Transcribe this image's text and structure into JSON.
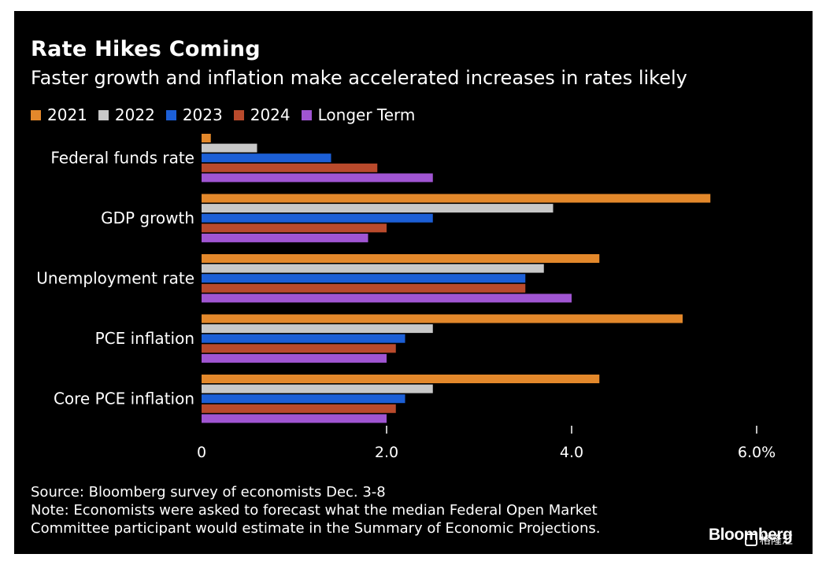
{
  "header": {
    "title": "Rate Hikes Coming",
    "subtitle": "Faster growth and inflation make accelerated increases in rates likely"
  },
  "chart_data": {
    "type": "bar",
    "orientation": "horizontal",
    "categories": [
      "Federal funds rate",
      "GDP growth",
      "Unemployment rate",
      "PCE inflation",
      "Core PCE inflation"
    ],
    "series": [
      {
        "name": "2021",
        "color": "#e3882b",
        "values": [
          0.1,
          5.5,
          4.3,
          5.2,
          4.3
        ]
      },
      {
        "name": "2022",
        "color": "#c8c8c8",
        "values": [
          0.6,
          3.8,
          3.7,
          2.5,
          2.5
        ]
      },
      {
        "name": "2023",
        "color": "#1c5fd6",
        "values": [
          1.4,
          2.5,
          3.5,
          2.2,
          2.2
        ]
      },
      {
        "name": "2024",
        "color": "#b94a2c",
        "values": [
          1.9,
          2.0,
          3.5,
          2.1,
          2.1
        ]
      },
      {
        "name": "Longer Term",
        "color": "#a055d2",
        "values": [
          2.5,
          1.8,
          4.0,
          2.0,
          2.0
        ]
      }
    ],
    "xlim": [
      0,
      6
    ],
    "xticks": [
      0,
      2,
      4,
      6
    ],
    "xtick_labels": [
      "0",
      "2.0",
      "4.0",
      "6.0%"
    ],
    "grid": false,
    "legend_position": "top-left"
  },
  "footer": {
    "source": "Source: Bloomberg survey of economists Dec. 3-8",
    "note_line1": "Note: Economists were asked to forecast what the median Federal Open Market",
    "note_line2": "Committee participant would estimate in the Summary of Economic Projections.",
    "brand": "Bloomberg",
    "watermark": "格隆汇"
  }
}
